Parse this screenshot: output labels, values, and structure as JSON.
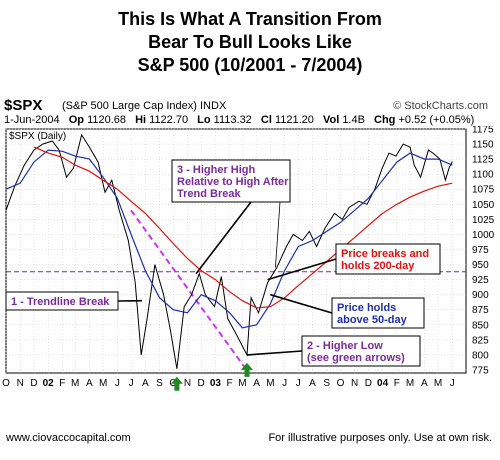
{
  "title": {
    "line1": "This Is What A Transition From",
    "line2": "Bear To Bull Looks Like",
    "line3": "S&P 500 (10/2001 - 7/2004)"
  },
  "header": {
    "symbol": "$SPX",
    "description": "(S&P 500 Large Cap Index)  INDX",
    "source": "© StockCharts.com",
    "date": "1-Jun-2004",
    "open_label": "Op",
    "open": "1120.68",
    "high_label": "Hi",
    "high": "1122.70",
    "low_label": "Lo",
    "low": "1113.32",
    "close_label": "Cl",
    "close": "1121.20",
    "vol_label": "Vol",
    "vol": "1.4B",
    "chg_label": "Chg",
    "chg": "+0.52 (+0.05%)",
    "plot_label": "$SPX (Daily)"
  },
  "footer": {
    "left": "www.ciovaccocapital.com",
    "right": "For illustrative purposes only.  Use at own risk."
  },
  "colors": {
    "price": "#000000",
    "ma50": "#1f2fa8",
    "ma200": "#dd1111",
    "trendline": "#cc33ff",
    "hline": "#7a2a99",
    "arrow": "#1f8a1f",
    "grid": "#c8c8c8"
  },
  "chart_data": {
    "type": "line",
    "ylim": [
      770,
      1175
    ],
    "yticks": [
      775,
      800,
      825,
      850,
      875,
      900,
      925,
      950,
      975,
      1000,
      1025,
      1050,
      1075,
      1100,
      1125,
      1150,
      1175
    ],
    "xlim": [
      "2001-10-01",
      "2004-07-01"
    ],
    "xticks": [
      {
        "date": "2001-10-01",
        "label": "O"
      },
      {
        "date": "2001-11-01",
        "label": "N"
      },
      {
        "date": "2001-12-01",
        "label": "D"
      },
      {
        "date": "2002-01-01",
        "label": "02"
      },
      {
        "date": "2002-02-01",
        "label": "F"
      },
      {
        "date": "2002-03-01",
        "label": "M"
      },
      {
        "date": "2002-04-01",
        "label": "A"
      },
      {
        "date": "2002-05-01",
        "label": "M"
      },
      {
        "date": "2002-06-01",
        "label": "J"
      },
      {
        "date": "2002-07-01",
        "label": "J"
      },
      {
        "date": "2002-08-01",
        "label": "A"
      },
      {
        "date": "2002-09-01",
        "label": "S"
      },
      {
        "date": "2002-10-01",
        "label": "O"
      },
      {
        "date": "2002-11-01",
        "label": "N"
      },
      {
        "date": "2002-12-01",
        "label": "D"
      },
      {
        "date": "2003-01-01",
        "label": "03"
      },
      {
        "date": "2003-02-01",
        "label": "F"
      },
      {
        "date": "2003-03-01",
        "label": "M"
      },
      {
        "date": "2003-04-01",
        "label": "A"
      },
      {
        "date": "2003-05-01",
        "label": "M"
      },
      {
        "date": "2003-06-01",
        "label": "J"
      },
      {
        "date": "2003-07-01",
        "label": "J"
      },
      {
        "date": "2003-08-01",
        "label": "A"
      },
      {
        "date": "2003-09-01",
        "label": "S"
      },
      {
        "date": "2003-10-01",
        "label": "O"
      },
      {
        "date": "2003-11-01",
        "label": "N"
      },
      {
        "date": "2003-12-01",
        "label": "D"
      },
      {
        "date": "2004-01-01",
        "label": "04"
      },
      {
        "date": "2004-02-01",
        "label": "F"
      },
      {
        "date": "2004-03-01",
        "label": "M"
      },
      {
        "date": "2004-04-01",
        "label": "A"
      },
      {
        "date": "2004-05-01",
        "label": "M"
      },
      {
        "date": "2004-06-01",
        "label": "J"
      }
    ],
    "grid": true,
    "series": [
      {
        "key": "price",
        "points": [
          [
            "2001-10-01",
            1040
          ],
          [
            "2001-10-20",
            1080
          ],
          [
            "2001-11-10",
            1115
          ],
          [
            "2001-12-01",
            1140
          ],
          [
            "2001-12-20",
            1150
          ],
          [
            "2002-01-10",
            1155
          ],
          [
            "2002-01-25",
            1140
          ],
          [
            "2002-02-10",
            1095
          ],
          [
            "2002-02-25",
            1110
          ],
          [
            "2002-03-15",
            1165
          ],
          [
            "2002-04-01",
            1145
          ],
          [
            "2002-04-20",
            1120
          ],
          [
            "2002-05-05",
            1070
          ],
          [
            "2002-05-20",
            1090
          ],
          [
            "2002-06-05",
            1040
          ],
          [
            "2002-06-25",
            990
          ],
          [
            "2002-07-10",
            920
          ],
          [
            "2002-07-23",
            800
          ],
          [
            "2002-08-05",
            860
          ],
          [
            "2002-08-22",
            950
          ],
          [
            "2002-09-10",
            900
          ],
          [
            "2002-09-25",
            840
          ],
          [
            "2002-10-09",
            777
          ],
          [
            "2002-10-25",
            880
          ],
          [
            "2002-11-10",
            900
          ],
          [
            "2002-11-27",
            935
          ],
          [
            "2002-12-10",
            900
          ],
          [
            "2002-12-30",
            880
          ],
          [
            "2003-01-14",
            930
          ],
          [
            "2003-01-28",
            860
          ],
          [
            "2003-02-15",
            835
          ],
          [
            "2003-03-11",
            800
          ],
          [
            "2003-03-20",
            895
          ],
          [
            "2003-04-05",
            870
          ],
          [
            "2003-04-25",
            920
          ],
          [
            "2003-05-15",
            945
          ],
          [
            "2003-06-05",
            980
          ],
          [
            "2003-06-20",
            1000
          ],
          [
            "2003-07-10",
            990
          ],
          [
            "2003-07-25",
            1005
          ],
          [
            "2003-08-10",
            980
          ],
          [
            "2003-08-28",
            1010
          ],
          [
            "2003-09-18",
            1035
          ],
          [
            "2003-10-05",
            1025
          ],
          [
            "2003-10-20",
            1045
          ],
          [
            "2003-11-10",
            1055
          ],
          [
            "2003-11-28",
            1050
          ],
          [
            "2003-12-15",
            1075
          ],
          [
            "2003-12-31",
            1110
          ],
          [
            "2004-01-15",
            1135
          ],
          [
            "2004-01-30",
            1130
          ],
          [
            "2004-02-15",
            1150
          ],
          [
            "2004-03-01",
            1145
          ],
          [
            "2004-03-10",
            1115
          ],
          [
            "2004-03-24",
            1095
          ],
          [
            "2004-04-10",
            1140
          ],
          [
            "2004-04-20",
            1135
          ],
          [
            "2004-05-05",
            1125
          ],
          [
            "2004-05-17",
            1090
          ],
          [
            "2004-05-25",
            1110
          ],
          [
            "2004-06-01",
            1121
          ]
        ]
      },
      {
        "key": "ma50",
        "points": [
          [
            "2001-10-01",
            1075
          ],
          [
            "2001-11-01",
            1085
          ],
          [
            "2001-12-01",
            1120
          ],
          [
            "2002-01-01",
            1140
          ],
          [
            "2002-02-01",
            1138
          ],
          [
            "2002-03-01",
            1130
          ],
          [
            "2002-04-01",
            1125
          ],
          [
            "2002-05-01",
            1095
          ],
          [
            "2002-06-01",
            1060
          ],
          [
            "2002-07-01",
            1000
          ],
          [
            "2002-08-01",
            940
          ],
          [
            "2002-09-01",
            895
          ],
          [
            "2002-10-01",
            875
          ],
          [
            "2002-11-01",
            870
          ],
          [
            "2002-12-01",
            900
          ],
          [
            "2003-01-01",
            890
          ],
          [
            "2003-02-01",
            870
          ],
          [
            "2003-03-01",
            845
          ],
          [
            "2003-04-01",
            850
          ],
          [
            "2003-05-01",
            885
          ],
          [
            "2003-06-01",
            940
          ],
          [
            "2003-07-01",
            980
          ],
          [
            "2003-08-01",
            990
          ],
          [
            "2003-09-01",
            1005
          ],
          [
            "2003-10-01",
            1020
          ],
          [
            "2003-11-01",
            1040
          ],
          [
            "2003-12-01",
            1060
          ],
          [
            "2004-01-01",
            1090
          ],
          [
            "2004-02-01",
            1120
          ],
          [
            "2004-03-01",
            1135
          ],
          [
            "2004-04-01",
            1125
          ],
          [
            "2004-05-01",
            1125
          ],
          [
            "2004-06-01",
            1115
          ]
        ]
      },
      {
        "key": "ma200",
        "points": [
          [
            "2001-12-01",
            1145
          ],
          [
            "2002-01-01",
            1135
          ],
          [
            "2002-02-01",
            1128
          ],
          [
            "2002-03-01",
            1115
          ],
          [
            "2002-04-01",
            1105
          ],
          [
            "2002-05-01",
            1090
          ],
          [
            "2002-06-01",
            1075
          ],
          [
            "2002-07-01",
            1055
          ],
          [
            "2002-08-01",
            1035
          ],
          [
            "2002-09-01",
            1010
          ],
          [
            "2002-10-01",
            985
          ],
          [
            "2002-11-01",
            960
          ],
          [
            "2002-12-01",
            940
          ],
          [
            "2003-01-01",
            925
          ],
          [
            "2003-02-01",
            905
          ],
          [
            "2003-03-01",
            890
          ],
          [
            "2003-04-01",
            878
          ],
          [
            "2003-05-01",
            880
          ],
          [
            "2003-06-01",
            895
          ],
          [
            "2003-07-01",
            915
          ],
          [
            "2003-08-01",
            935
          ],
          [
            "2003-09-01",
            955
          ],
          [
            "2003-10-01",
            975
          ],
          [
            "2003-11-01",
            995
          ],
          [
            "2003-12-01",
            1015
          ],
          [
            "2004-01-01",
            1035
          ],
          [
            "2004-02-01",
            1050
          ],
          [
            "2004-03-01",
            1062
          ],
          [
            "2004-04-01",
            1072
          ],
          [
            "2004-05-01",
            1080
          ],
          [
            "2004-06-01",
            1085
          ]
        ]
      }
    ],
    "reference_line": {
      "y": 938
    },
    "trendline": {
      "from": [
        "2002-07-01",
        1040
      ],
      "to": [
        "2003-03-10",
        775
      ]
    },
    "annotations": [
      {
        "id": "a1",
        "lines": [
          "1 - Trendline Break"
        ],
        "color": "#7a2a99",
        "pointer": [
          "2002-07-25",
          890
        ]
      },
      {
        "id": "a2",
        "lines": [
          "2 - Higher Low",
          "(see green arrows)"
        ],
        "color": "#7a2a99",
        "pointer": [
          "2003-03-12",
          800
        ]
      },
      {
        "id": "a3",
        "lines": [
          "3 - Higher High",
          "Relative to High After",
          "Trend Break"
        ],
        "color": "#7a2a99",
        "pointer": [
          "2002-11-20",
          935
        ],
        "pointer2": [
          "2003-05-12",
          945
        ]
      },
      {
        "id": "a4",
        "lines": [
          "Price holds",
          "above 50-day"
        ],
        "color": "#1f2fa8",
        "pointer": [
          "2003-05-01",
          900
        ]
      },
      {
        "id": "a5",
        "lines": [
          "Price breaks and",
          "holds 200-day"
        ],
        "color": "#dd1111",
        "pointer": [
          "2003-04-25",
          925
        ]
      }
    ],
    "arrows": [
      {
        "date": "2002-10-09",
        "y": 777
      },
      {
        "date": "2003-03-11",
        "y": 800
      }
    ]
  }
}
